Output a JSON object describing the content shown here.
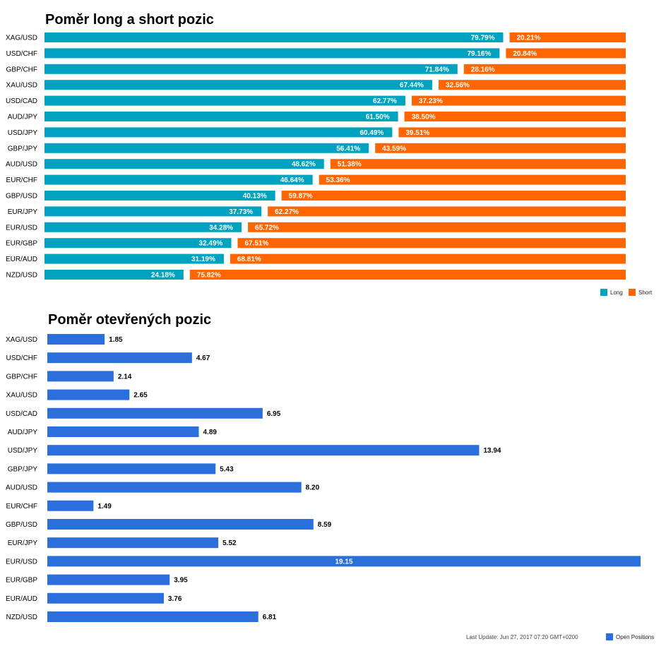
{
  "chart_data": [
    {
      "type": "bar",
      "stacked": true,
      "orientation": "horizontal",
      "title": "Poměr long a short pozic",
      "categories": [
        "XAG/USD",
        "USD/CHF",
        "GBP/CHF",
        "XAU/USD",
        "USD/CAD",
        "AUD/JPY",
        "USD/JPY",
        "GBP/JPY",
        "AUD/USD",
        "EUR/CHF",
        "GBP/USD",
        "EUR/JPY",
        "EUR/USD",
        "EUR/GBP",
        "EUR/AUD",
        "NZD/USD"
      ],
      "series": [
        {
          "name": "Long",
          "color": "#00a3bf",
          "values": [
            79.79,
            79.16,
            71.84,
            67.44,
            62.77,
            61.5,
            60.49,
            56.41,
            48.62,
            46.64,
            40.13,
            37.73,
            34.28,
            32.49,
            31.19,
            24.18
          ],
          "labels": [
            "79.79%",
            "79.16%",
            "71.84%",
            "67.44%",
            "62.77%",
            "61.50%",
            "60.49%",
            "56.41%",
            "48.62%",
            "46.64%",
            "40.13%",
            "37.73%",
            "34.28%",
            "32.49%",
            "31.19%",
            "24.18%"
          ]
        },
        {
          "name": "Short",
          "color": "#ff6600",
          "values": [
            20.21,
            20.84,
            28.16,
            32.56,
            37.23,
            38.5,
            39.51,
            43.59,
            51.38,
            53.36,
            59.87,
            62.27,
            65.72,
            67.51,
            68.81,
            75.82
          ],
          "labels": [
            "20.21%",
            "20.84%",
            "28.16%",
            "32.56%",
            "37.23%",
            "38.50%",
            "39.51%",
            "43.59%",
            "51.38%",
            "53.36%",
            "59.87%",
            "62.27%",
            "65.72%",
            "67.51%",
            "68.81%",
            "75.82%"
          ]
        }
      ],
      "legend": "bottom-right",
      "grid": false
    },
    {
      "type": "bar",
      "orientation": "horizontal",
      "title": "Poměr otevřených pozic",
      "categories": [
        "XAG/USD",
        "USD/CHF",
        "GBP/CHF",
        "XAU/USD",
        "USD/CAD",
        "AUD/JPY",
        "USD/JPY",
        "GBP/JPY",
        "AUD/USD",
        "EUR/CHF",
        "GBP/USD",
        "EUR/JPY",
        "EUR/USD",
        "EUR/GBP",
        "EUR/AUD",
        "NZD/USD"
      ],
      "series": [
        {
          "name": "Open Positions",
          "color": "#2a6fdb",
          "values": [
            1.85,
            4.67,
            2.14,
            2.65,
            6.95,
            4.89,
            13.94,
            5.43,
            8.2,
            1.49,
            8.59,
            5.52,
            19.15,
            3.95,
            3.76,
            6.81
          ],
          "labels": [
            "1.85",
            "4.67",
            "2.14",
            "2.65",
            "6.95",
            "4.89",
            "13.94",
            "5.43",
            "8.20",
            "1.49",
            "8.59",
            "5.52",
            "19.15",
            "3.95",
            "3.76",
            "6.81"
          ]
        }
      ],
      "xlim": [
        0,
        19.15
      ],
      "legend": "bottom-right",
      "grid": false
    }
  ],
  "footer": {
    "last_update": "Last Update: Jun 27, 2017 07:20 GMT+0200"
  }
}
